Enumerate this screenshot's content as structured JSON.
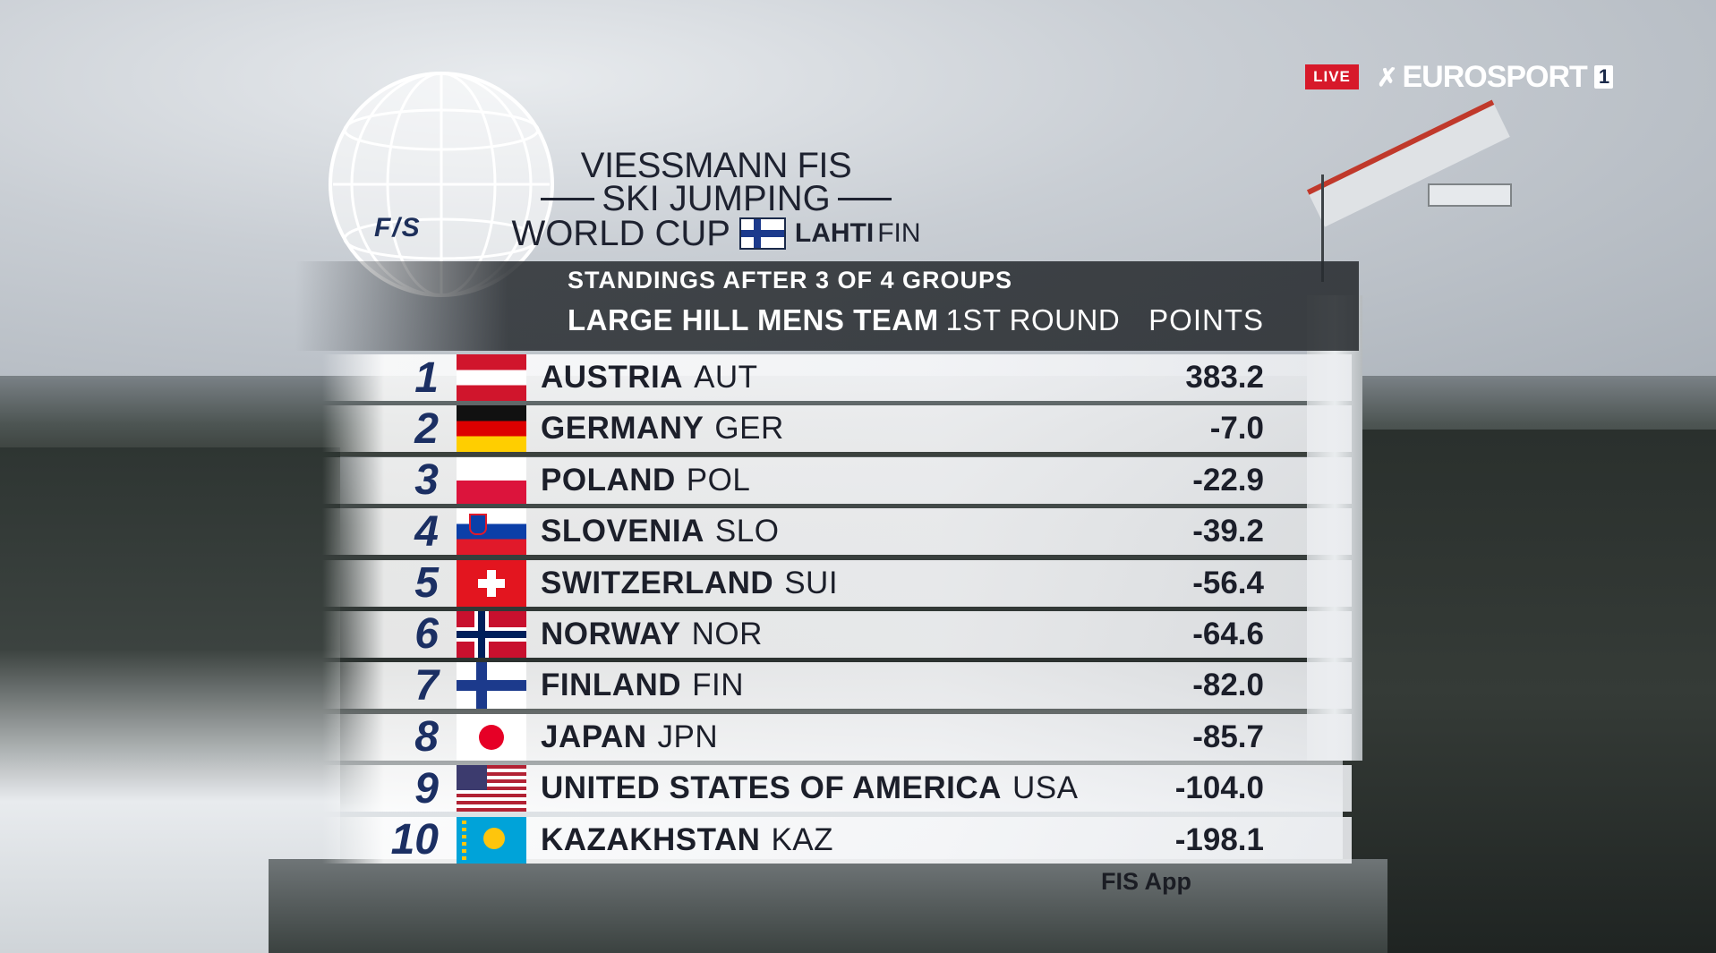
{
  "broadcast": {
    "live_label": "LIVE",
    "channel_name": "EUROSPORT",
    "channel_number": "1",
    "icon": "eurosport-arrow-icon"
  },
  "event": {
    "title_line1": "VIESSMANN FIS",
    "title_line2": "SKI JUMPING",
    "title_line3": "WORLD CUP",
    "venue": "LAHTI",
    "venue_code": "FIN",
    "logo_text": "F/S"
  },
  "standings": {
    "subtitle": "STANDINGS AFTER 3 OF 4 GROUPS",
    "event_name": "LARGE HILL MENS TEAM",
    "round": "1ST ROUND",
    "points_header": "POINTS",
    "rows": [
      {
        "rank": "1",
        "flag": "aut",
        "country": "AUSTRIA",
        "code": "AUT",
        "points": "383.2"
      },
      {
        "rank": "2",
        "flag": "ger",
        "country": "GERMANY",
        "code": "GER",
        "points": "-7.0"
      },
      {
        "rank": "3",
        "flag": "pol",
        "country": "POLAND",
        "code": "POL",
        "points": "-22.9"
      },
      {
        "rank": "4",
        "flag": "slo",
        "country": "SLOVENIA",
        "code": "SLO",
        "points": "-39.2"
      },
      {
        "rank": "5",
        "flag": "sui",
        "country": "SWITZERLAND",
        "code": "SUI",
        "points": "-56.4"
      },
      {
        "rank": "6",
        "flag": "nor",
        "country": "NORWAY",
        "code": "NOR",
        "points": "-64.6"
      },
      {
        "rank": "7",
        "flag": "fin",
        "country": "FINLAND",
        "code": "FIN",
        "points": "-82.0"
      },
      {
        "rank": "8",
        "flag": "jpn",
        "country": "JAPAN",
        "code": "JPN",
        "points": "-85.7"
      },
      {
        "rank": "9",
        "flag": "usa",
        "country": "UNITED STATES OF AMERICA",
        "code": "USA",
        "points": "-104.0"
      },
      {
        "rank": "10",
        "flag": "kaz",
        "country": "KAZAKHSTAN",
        "code": "KAZ",
        "points": "-198.1"
      }
    ]
  },
  "footer": {
    "app_label": "FIS App"
  },
  "colors": {
    "live_red": "#d7192a",
    "rank_blue": "#1b2f63",
    "header_bar": "#282c30"
  }
}
